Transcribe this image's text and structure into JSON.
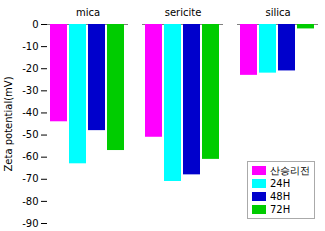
{
  "chart_data": {
    "type": "bar",
    "categories": [
      "mica",
      "sericite",
      "silica"
    ],
    "series": [
      {
        "name": "산승리전",
        "color": "#ff00ff",
        "values": [
          -44,
          -51,
          -23
        ]
      },
      {
        "name": "24H",
        "color": "#00ffff",
        "values": [
          -63,
          -71,
          -22
        ]
      },
      {
        "name": "48H",
        "color": "#0000cc",
        "values": [
          -48,
          -68,
          -21
        ]
      },
      {
        "name": "72H",
        "color": "#00cc00",
        "values": [
          -57,
          -61,
          -2
        ]
      }
    ],
    "ylabel": "Zeta potential(mV)",
    "ylim": [
      -90,
      0
    ],
    "yticks": [
      0,
      -10,
      -20,
      -30,
      -40,
      -50,
      -60,
      -70,
      -80,
      -90
    ],
    "legend": "lower right",
    "grid": false
  }
}
